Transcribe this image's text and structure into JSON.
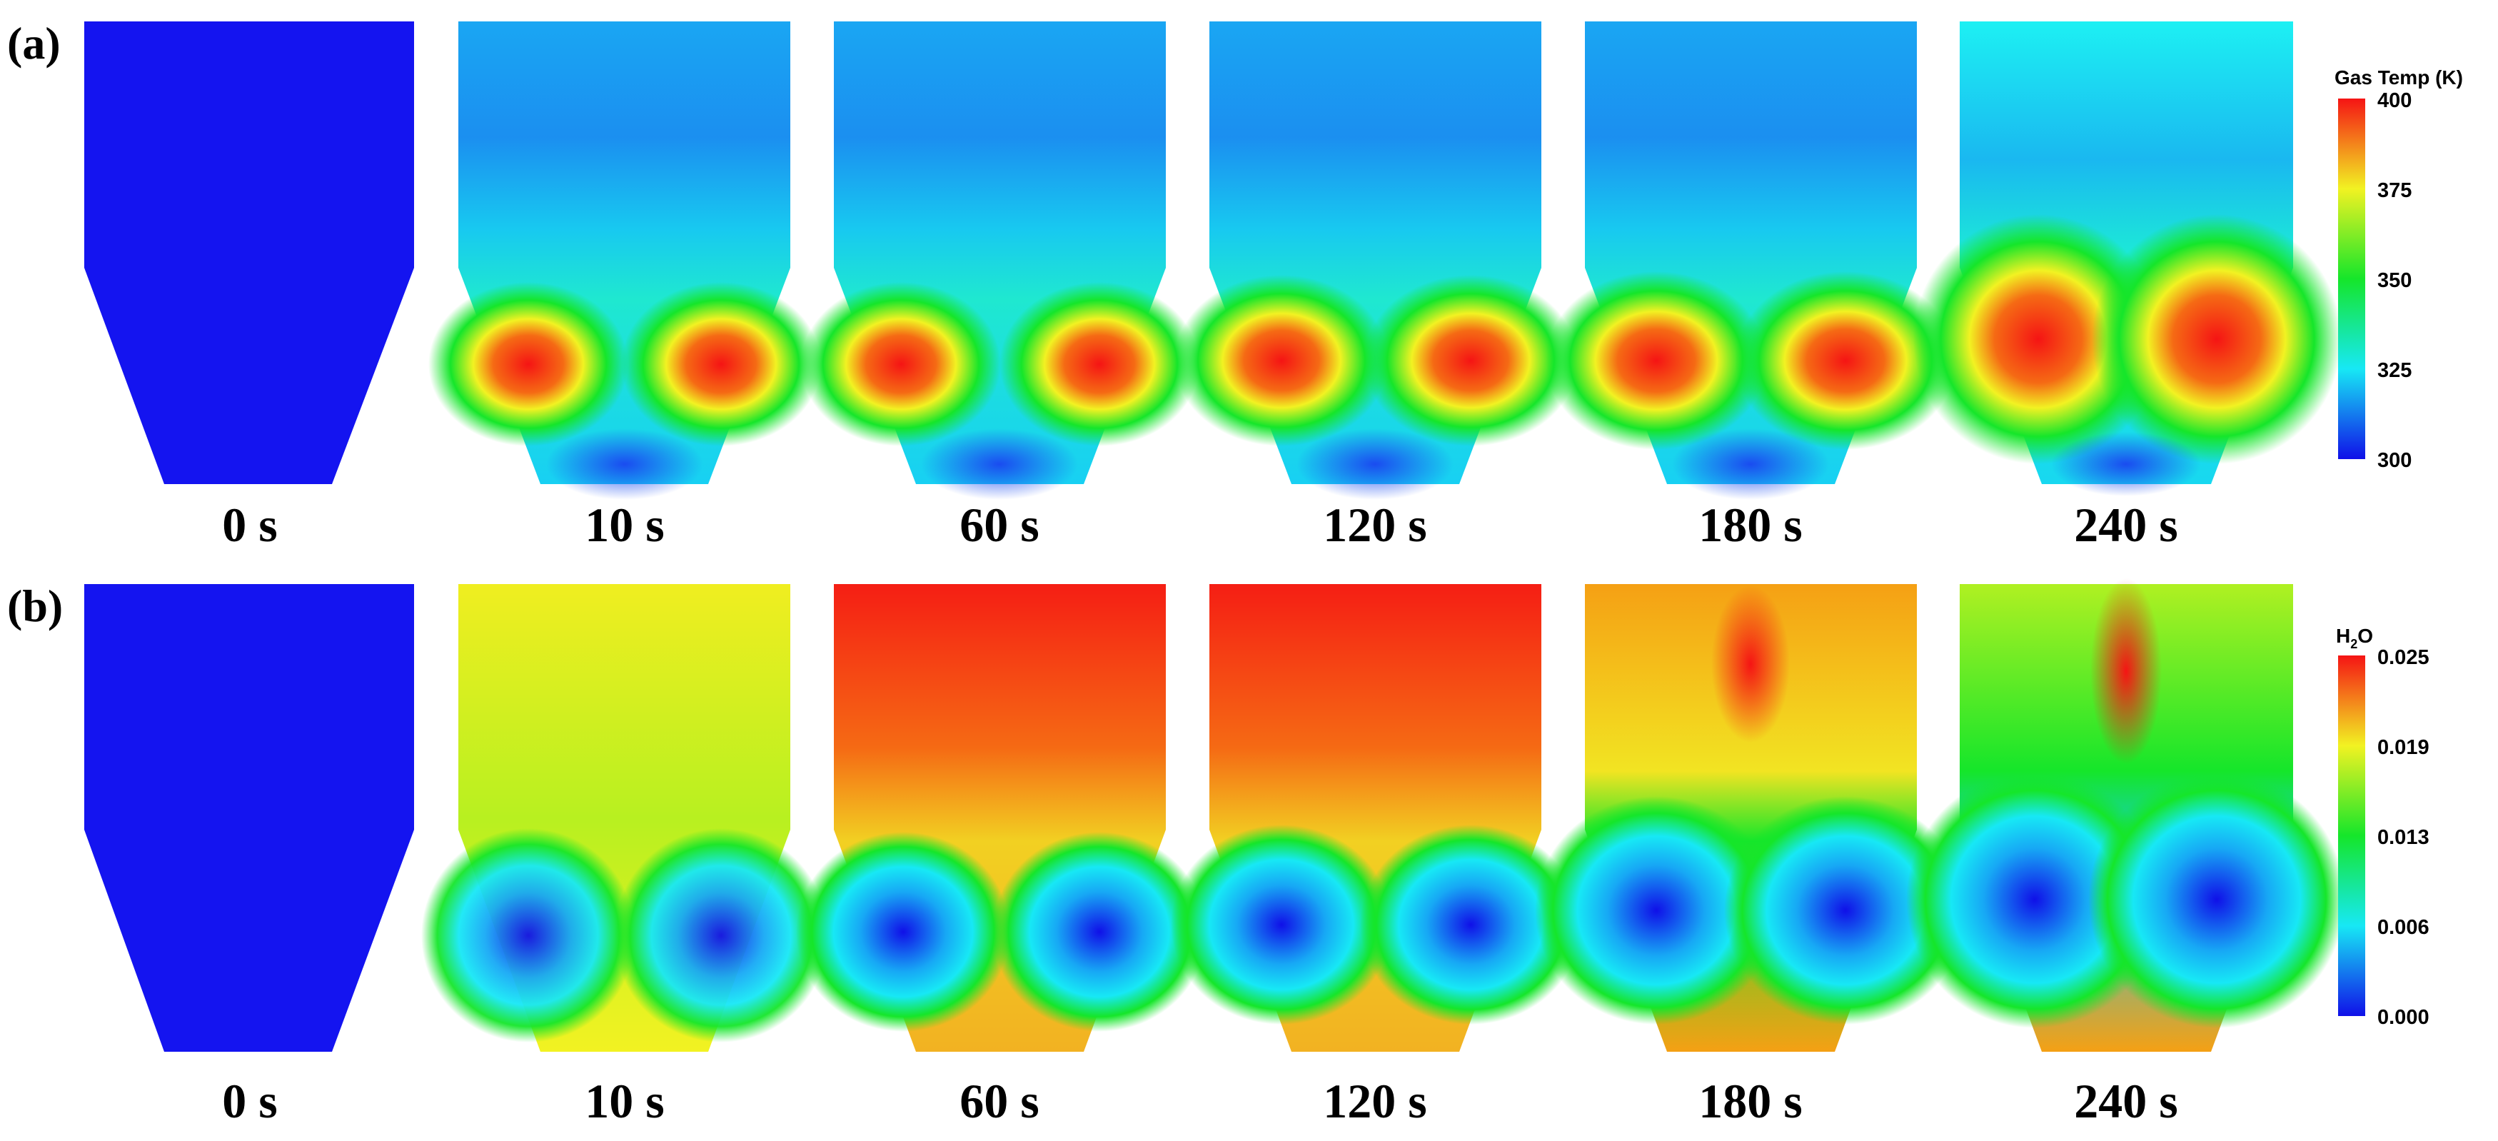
{
  "row_a": {
    "tag": "(a)",
    "times": [
      "0 s",
      "10 s",
      "60 s",
      "120 s",
      "180 s",
      "240 s"
    ],
    "colorbar": {
      "title": "Gas Temp (K)",
      "ticks": [
        "400",
        "375",
        "350",
        "325",
        "300"
      ],
      "range": [
        300,
        400
      ]
    }
  },
  "row_b": {
    "tag": "(b)",
    "times": [
      "0 s",
      "10 s",
      "60 s",
      "120 s",
      "180 s",
      "240 s"
    ],
    "colorbar": {
      "title_main": "H",
      "title_sub": "2",
      "title_end": "O",
      "ticks": [
        "0.025",
        "0.019",
        "0.013",
        "0.006",
        "0.000"
      ],
      "range": [
        0.0,
        0.025
      ]
    }
  },
  "colors": {
    "cold_blue": "#1414f0",
    "cyan": "#17e8f5",
    "green": "#15e62a",
    "yellow": "#f2f222",
    "red": "#f51414"
  }
}
